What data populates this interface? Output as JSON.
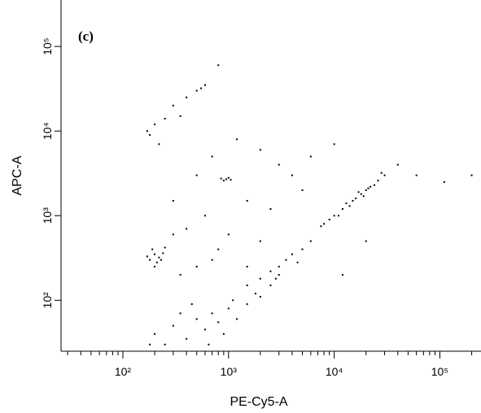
{
  "chart_data": {
    "type": "scatter",
    "annotation": "(c)",
    "x_label": "PE-Cy5-A",
    "y_label": "APC-A",
    "log_x": true,
    "log_y": true,
    "color": "#000000",
    "xlim": [
      26,
      245000
    ],
    "ylim": [
      25,
      354000
    ],
    "xticks": [
      {
        "value": 100,
        "label": "10²"
      },
      {
        "value": 1000,
        "label": "10³"
      },
      {
        "value": 10000,
        "label": "10⁴"
      },
      {
        "value": 100000,
        "label": "10⁵"
      }
    ],
    "xminorticks": [
      30,
      40,
      50,
      60,
      70,
      80,
      90,
      200,
      300,
      400,
      500,
      600,
      700,
      800,
      900,
      2000,
      3000,
      4000,
      5000,
      6000,
      7000,
      8000,
      9000,
      20000,
      30000,
      40000,
      50000,
      60000,
      70000,
      80000,
      90000,
      200000
    ],
    "yticks": [
      {
        "value": 100,
        "label": "10²"
      },
      {
        "value": 1000,
        "label": "10³"
      },
      {
        "value": 10000,
        "label": "10⁴"
      },
      {
        "value": 100000,
        "label": "10⁵"
      }
    ],
    "x": [
      8000,
      10000,
      12000,
      15000,
      18000,
      22000,
      26000,
      30000,
      9000,
      11000,
      13000,
      16000,
      20000,
      24000,
      14000,
      17000,
      7500,
      28000,
      19000,
      21000,
      180,
      200,
      220,
      190,
      210,
      240,
      170,
      230,
      200,
      250,
      900,
      1000,
      950,
      850,
      1050,
      200,
      300,
      400,
      500,
      600,
      700,
      800,
      1000,
      1200,
      1500,
      250,
      350,
      450,
      900,
      1100,
      180,
      650,
      2000,
      2500,
      3000,
      1500,
      2000,
      2500,
      3000,
      3500,
      4000,
      5000,
      6000,
      1800,
      2800,
      4500,
      180,
      200,
      250,
      300,
      400,
      500,
      600,
      800,
      220,
      350,
      550,
      170,
      300,
      500,
      700,
      1200,
      2000,
      3000,
      400,
      600,
      1500,
      2500,
      800,
      1000,
      4000,
      6000,
      10000,
      300,
      5000,
      40000,
      200000,
      110000,
      1500,
      2000,
      350,
      500,
      700,
      12000,
      20000,
      60000
    ],
    "values": [
      800,
      1000,
      1200,
      1500,
      1800,
      2200,
      2600,
      3000,
      900,
      1000,
      1400,
      1600,
      2000,
      2300,
      1300,
      1900,
      750,
      3200,
      1700,
      2100,
      300,
      350,
      320,
      400,
      280,
      360,
      330,
      300,
      250,
      420,
      2600,
      2800,
      2700,
      2750,
      2650,
      40,
      50,
      35,
      60,
      45,
      70,
      55,
      80,
      60,
      90,
      30,
      70,
      90,
      40,
      100,
      30,
      30,
      110,
      150,
      200,
      150,
      180,
      220,
      250,
      300,
      350,
      400,
      500,
      120,
      180,
      280,
      9000,
      12000,
      14000,
      20000,
      25000,
      30000,
      35000,
      60000,
      7000,
      15000,
      32000,
      10000,
      1500,
      3000,
      5000,
      8000,
      6000,
      4000,
      700,
      1000,
      1500,
      1200,
      400,
      600,
      3000,
      5000,
      7000,
      600,
      2000,
      4000,
      3000,
      2500,
      250,
      500,
      200,
      250,
      300,
      200,
      500,
      3000
    ]
  }
}
